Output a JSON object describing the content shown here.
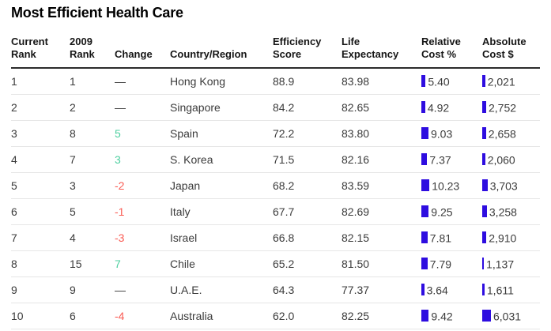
{
  "title": "Most Efficient Health Care",
  "colors": {
    "bar_blue": "#2e0de0",
    "positive_green": "#4ecfa0",
    "negative_red": "#fa5b53"
  },
  "columns": [
    {
      "line1": "Current",
      "line2": "Rank"
    },
    {
      "line1": "2009",
      "line2": "Rank"
    },
    {
      "line1": "",
      "line2": "Change"
    },
    {
      "line1": "",
      "line2": "Country/Region"
    },
    {
      "line1": "Efficiency",
      "line2": "Score"
    },
    {
      "line1": "Life",
      "line2": "Expectancy"
    },
    {
      "line1": "Relative",
      "line2": "Cost %"
    },
    {
      "line1": "Absolute",
      "line2": "Cost $"
    }
  ],
  "rows": [
    {
      "current_rank": "1",
      "rank_2009": "1",
      "change": "—",
      "country": "Hong Kong",
      "efficiency_score": "88.9",
      "life_expectancy": "83.98",
      "relative_cost": "5.40",
      "absolute_cost": "2,021"
    },
    {
      "current_rank": "2",
      "rank_2009": "2",
      "change": "—",
      "country": "Singapore",
      "efficiency_score": "84.2",
      "life_expectancy": "82.65",
      "relative_cost": "4.92",
      "absolute_cost": "2,752"
    },
    {
      "current_rank": "3",
      "rank_2009": "8",
      "change": "5",
      "country": "Spain",
      "efficiency_score": "72.2",
      "life_expectancy": "83.80",
      "relative_cost": "9.03",
      "absolute_cost": "2,658"
    },
    {
      "current_rank": "4",
      "rank_2009": "7",
      "change": "3",
      "country": "S. Korea",
      "efficiency_score": "71.5",
      "life_expectancy": "82.16",
      "relative_cost": "7.37",
      "absolute_cost": "2,060"
    },
    {
      "current_rank": "5",
      "rank_2009": "3",
      "change": "-2",
      "country": "Japan",
      "efficiency_score": "68.2",
      "life_expectancy": "83.59",
      "relative_cost": "10.23",
      "absolute_cost": "3,703"
    },
    {
      "current_rank": "6",
      "rank_2009": "5",
      "change": "-1",
      "country": "Italy",
      "efficiency_score": "67.7",
      "life_expectancy": "82.69",
      "relative_cost": "9.25",
      "absolute_cost": "3,258"
    },
    {
      "current_rank": "7",
      "rank_2009": "4",
      "change": "-3",
      "country": "Israel",
      "efficiency_score": "66.8",
      "life_expectancy": "82.15",
      "relative_cost": "7.81",
      "absolute_cost": "2,910"
    },
    {
      "current_rank": "8",
      "rank_2009": "15",
      "change": "7",
      "country": "Chile",
      "efficiency_score": "65.2",
      "life_expectancy": "81.50",
      "relative_cost": "7.79",
      "absolute_cost": "1,137"
    },
    {
      "current_rank": "9",
      "rank_2009": "9",
      "change": "—",
      "country": "U.A.E.",
      "efficiency_score": "64.3",
      "life_expectancy": "77.37",
      "relative_cost": "3.64",
      "absolute_cost": "1,611"
    },
    {
      "current_rank": "10",
      "rank_2009": "6",
      "change": "-4",
      "country": "Australia",
      "efficiency_score": "62.0",
      "life_expectancy": "82.25",
      "relative_cost": "9.42",
      "absolute_cost": "6,031"
    }
  ],
  "chart_data": {
    "type": "table",
    "title": "Most Efficient Health Care",
    "columns": [
      "Current Rank",
      "2009 Rank",
      "Change",
      "Country/Region",
      "Efficiency Score",
      "Life Expectancy",
      "Relative Cost %",
      "Absolute Cost $"
    ],
    "rows": [
      [
        1,
        1,
        "—",
        "Hong Kong",
        88.9,
        83.98,
        5.4,
        2021
      ],
      [
        2,
        2,
        "—",
        "Singapore",
        84.2,
        82.65,
        4.92,
        2752
      ],
      [
        3,
        8,
        5,
        "Spain",
        72.2,
        83.8,
        9.03,
        2658
      ],
      [
        4,
        7,
        3,
        "S. Korea",
        71.5,
        82.16,
        7.37,
        2060
      ],
      [
        5,
        3,
        -2,
        "Japan",
        68.2,
        83.59,
        10.23,
        3703
      ],
      [
        6,
        5,
        -1,
        "Italy",
        67.7,
        82.69,
        9.25,
        3258
      ],
      [
        7,
        4,
        -3,
        "Israel",
        66.8,
        82.15,
        7.81,
        2910
      ],
      [
        8,
        15,
        7,
        "Chile",
        65.2,
        81.5,
        7.79,
        1137
      ],
      [
        9,
        9,
        "—",
        "U.A.E.",
        64.3,
        77.37,
        3.64,
        1611
      ],
      [
        10,
        6,
        -4,
        "Australia",
        62.0,
        82.25,
        9.42,
        6031
      ]
    ],
    "bar_columns": [
      "Relative Cost %",
      "Absolute Cost $"
    ],
    "legend": "none",
    "grid": "row-separators-only"
  }
}
